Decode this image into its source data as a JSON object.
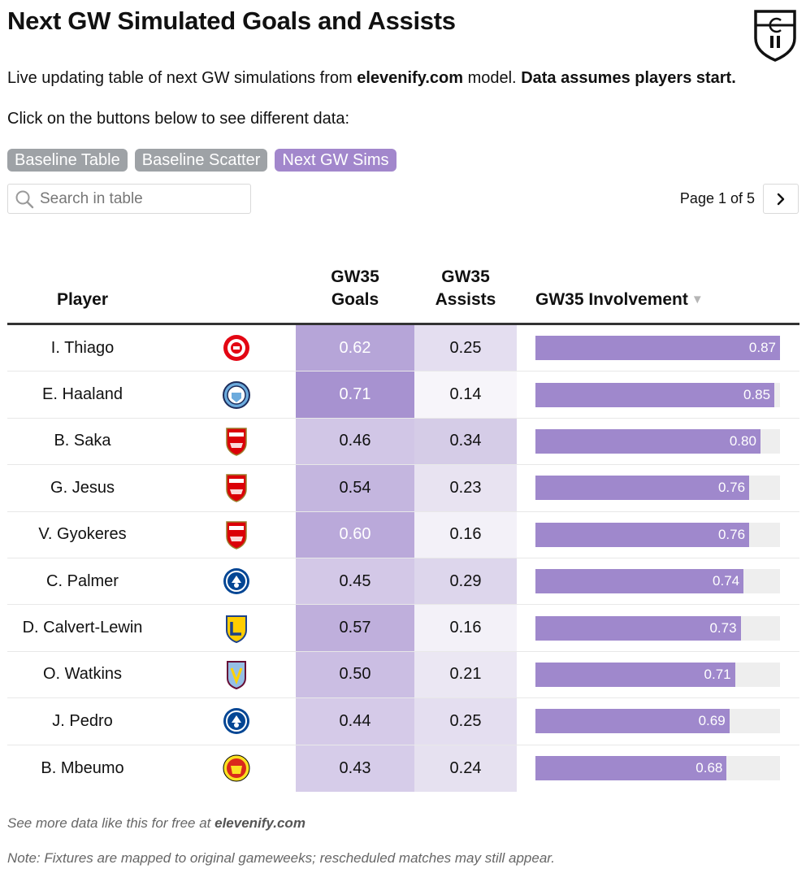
{
  "header": {
    "title": "Next GW Simulated Goals and Assists",
    "subtitle_pre": "Live updating table of next GW simulations from ",
    "subtitle_site": "elevenify.com",
    "subtitle_mid": " model. ",
    "subtitle_bold": "Data assumes players start.",
    "instruction": "Click on the buttons below to see different data:"
  },
  "buttons": [
    {
      "label": "Baseline Table",
      "active": false
    },
    {
      "label": "Baseline Scatter",
      "active": false
    },
    {
      "label": "Next GW Sims",
      "active": true
    }
  ],
  "search": {
    "placeholder": "Search in table",
    "value": ""
  },
  "pagination": {
    "text": "Page 1 of 5"
  },
  "table": {
    "headers": {
      "player": "Player",
      "goals_line1": "GW35",
      "goals_line2": "Goals",
      "assists_line1": "GW35",
      "assists_line2": "Assists",
      "involvement": "GW35 Involvement",
      "sort_indicator": "▼"
    },
    "rows": [
      {
        "player": "I. Thiago",
        "club": "brentford",
        "goals": "0.62",
        "assists": "0.25",
        "involvement": "0.87"
      },
      {
        "player": "E. Haaland",
        "club": "mancity",
        "goals": "0.71",
        "assists": "0.14",
        "involvement": "0.85"
      },
      {
        "player": "B. Saka",
        "club": "arsenal",
        "goals": "0.46",
        "assists": "0.34",
        "involvement": "0.80"
      },
      {
        "player": "G. Jesus",
        "club": "arsenal",
        "goals": "0.54",
        "assists": "0.23",
        "involvement": "0.76"
      },
      {
        "player": "V. Gyokeres",
        "club": "arsenal",
        "goals": "0.60",
        "assists": "0.16",
        "involvement": "0.76"
      },
      {
        "player": "C. Palmer",
        "club": "chelsea",
        "goals": "0.45",
        "assists": "0.29",
        "involvement": "0.74"
      },
      {
        "player": "D. Calvert-Lewin",
        "club": "leeds",
        "goals": "0.57",
        "assists": "0.16",
        "involvement": "0.73"
      },
      {
        "player": "O. Watkins",
        "club": "astonvilla",
        "goals": "0.50",
        "assists": "0.21",
        "involvement": "0.71"
      },
      {
        "player": "J. Pedro",
        "club": "chelsea",
        "goals": "0.44",
        "assists": "0.25",
        "involvement": "0.69"
      },
      {
        "player": "B. Mbeumo",
        "club": "manutd",
        "goals": "0.43",
        "assists": "0.24",
        "involvement": "0.68"
      }
    ]
  },
  "footer": {
    "line1_pre": "See more data like this for free at ",
    "line1_site": "elevenify.com",
    "line2": "Note: Fixtures are mapped to original gameweeks; rescheduled matches may still appear."
  },
  "colors": {
    "accent": "#a287cc",
    "bar": "#9f88cc",
    "button_inactive": "#9ea2a6",
    "brentford": "#e30613",
    "mancity": "#6cabdd",
    "arsenal": "#db0007",
    "chelsea": "#034694",
    "leeds": "#ffcd00",
    "astonvilla": "#95bfe5",
    "manutd": "#da291c"
  },
  "icons": {
    "logo": "elevenify-shield-logo",
    "search": "magnifier-icon",
    "next": "chevron-right-icon"
  }
}
